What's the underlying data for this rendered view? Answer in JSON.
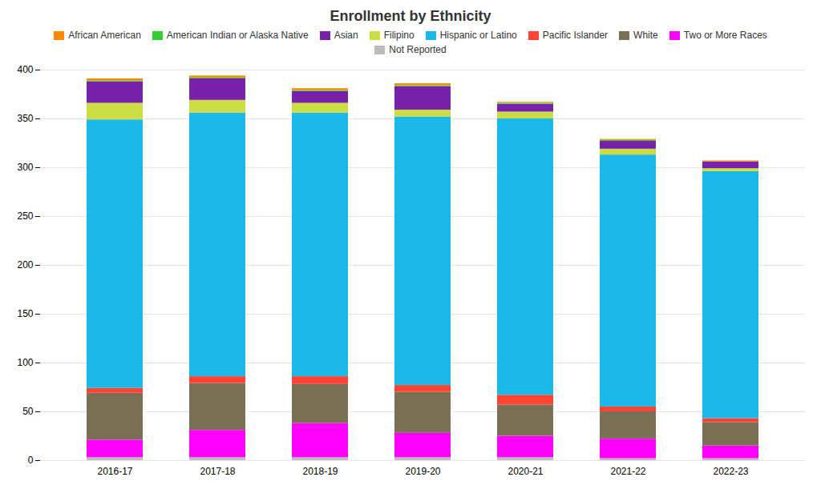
{
  "chart_data": {
    "type": "bar",
    "title": "Enrollment by Ethnicity",
    "categories": [
      "2016-17",
      "2017-18",
      "2018-19",
      "2019-20",
      "2020-21",
      "2021-22",
      "2022-23"
    ],
    "series": [
      {
        "name": "Not Reported",
        "color": "#BBBBBB",
        "values": [
          3,
          3,
          3,
          3,
          3,
          2,
          2
        ]
      },
      {
        "name": "Two or More Races",
        "color": "#FF00FF",
        "values": [
          18,
          28,
          35,
          25,
          22,
          20,
          13
        ]
      },
      {
        "name": "White",
        "color": "#7A7055",
        "values": [
          48,
          48,
          40,
          42,
          32,
          28,
          24
        ]
      },
      {
        "name": "Pacific Islander",
        "color": "#FF4433",
        "values": [
          5,
          7,
          8,
          7,
          10,
          5,
          4
        ]
      },
      {
        "name": "Hispanic or Latino",
        "color": "#1CB9E8",
        "values": [
          275,
          270,
          270,
          275,
          283,
          258,
          253
        ]
      },
      {
        "name": "Filipino",
        "color": "#CCDD44",
        "values": [
          17,
          13,
          10,
          7,
          7,
          6,
          3
        ]
      },
      {
        "name": "Asian",
        "color": "#7722AA",
        "values": [
          22,
          22,
          12,
          24,
          8,
          8,
          7
        ]
      },
      {
        "name": "American Indian or Alaska Native",
        "color": "#33CC33",
        "values": [
          1,
          1,
          1,
          1,
          1,
          1,
          0
        ]
      },
      {
        "name": "African American",
        "color": "#FF8800",
        "values": [
          2,
          2,
          2,
          2,
          1,
          1,
          1
        ]
      }
    ],
    "stacked": true,
    "ylim": [
      0,
      400
    ],
    "yticks": [
      0,
      50,
      100,
      150,
      200,
      250,
      300,
      350,
      400
    ],
    "grid": true,
    "legend": "top"
  }
}
